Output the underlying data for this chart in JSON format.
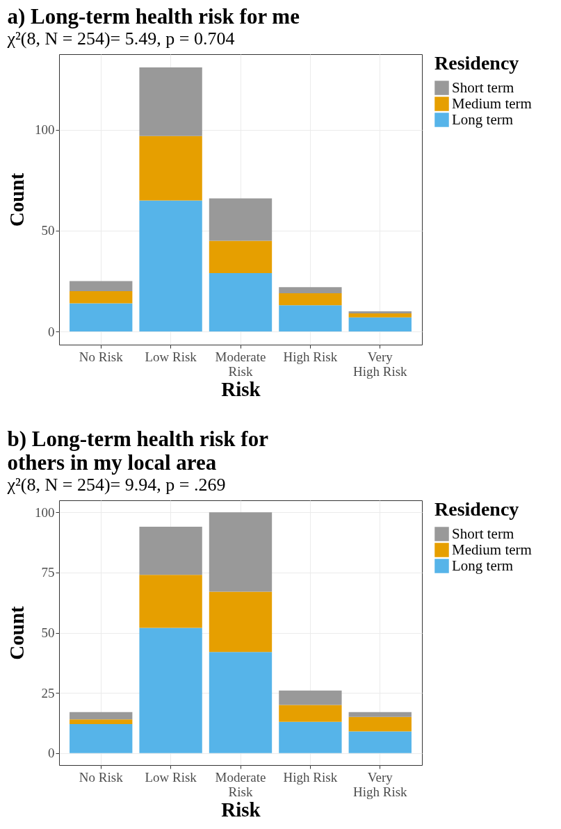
{
  "chart_data": [
    {
      "type": "bar",
      "title": "a) Long-term health risk for me",
      "subtitle": "χ²(8, N = 254)= 5.49, p = 0.704",
      "xlabel": "Risk",
      "ylabel": "Count",
      "legend_title": "Residency",
      "categories": [
        "No Risk",
        "Low Risk",
        "Moderate\nRisk",
        "High Risk",
        "Very\nHigh Risk"
      ],
      "stacked": true,
      "series": [
        {
          "name": "Long term",
          "color": "#56b4e9",
          "values": [
            14,
            65,
            29,
            13,
            7
          ]
        },
        {
          "name": "Medium term",
          "color": "#e69f00",
          "values": [
            6,
            32,
            16,
            6,
            2
          ]
        },
        {
          "name": "Short term",
          "color": "#999999",
          "values": [
            5,
            34,
            21,
            3,
            1
          ]
        }
      ],
      "ylim": [
        -6.55,
        137.55
      ],
      "yticks": [
        0,
        50,
        100
      ],
      "grid": true,
      "legend": "right"
    },
    {
      "type": "bar",
      "title": "b) Long-term health risk for\n others in my local area",
      "subtitle": "χ²(8, N = 254)= 9.94, p = .269",
      "xlabel": "Risk",
      "ylabel": "Count",
      "legend_title": "Residency",
      "categories": [
        "No Risk",
        "Low Risk",
        "Moderate\nRisk",
        "High Risk",
        "Very\nHigh Risk"
      ],
      "stacked": true,
      "series": [
        {
          "name": "Long term",
          "color": "#56b4e9",
          "values": [
            12,
            52,
            42,
            13,
            9
          ]
        },
        {
          "name": "Medium term",
          "color": "#e69f00",
          "values": [
            2,
            22,
            25,
            7,
            6
          ]
        },
        {
          "name": "Short term",
          "color": "#999999",
          "values": [
            3,
            20,
            33,
            6,
            2
          ]
        }
      ],
      "ylim": [
        -5,
        105
      ],
      "yticks": [
        0,
        25,
        50,
        75,
        100
      ],
      "grid": true,
      "legend": "right"
    }
  ]
}
